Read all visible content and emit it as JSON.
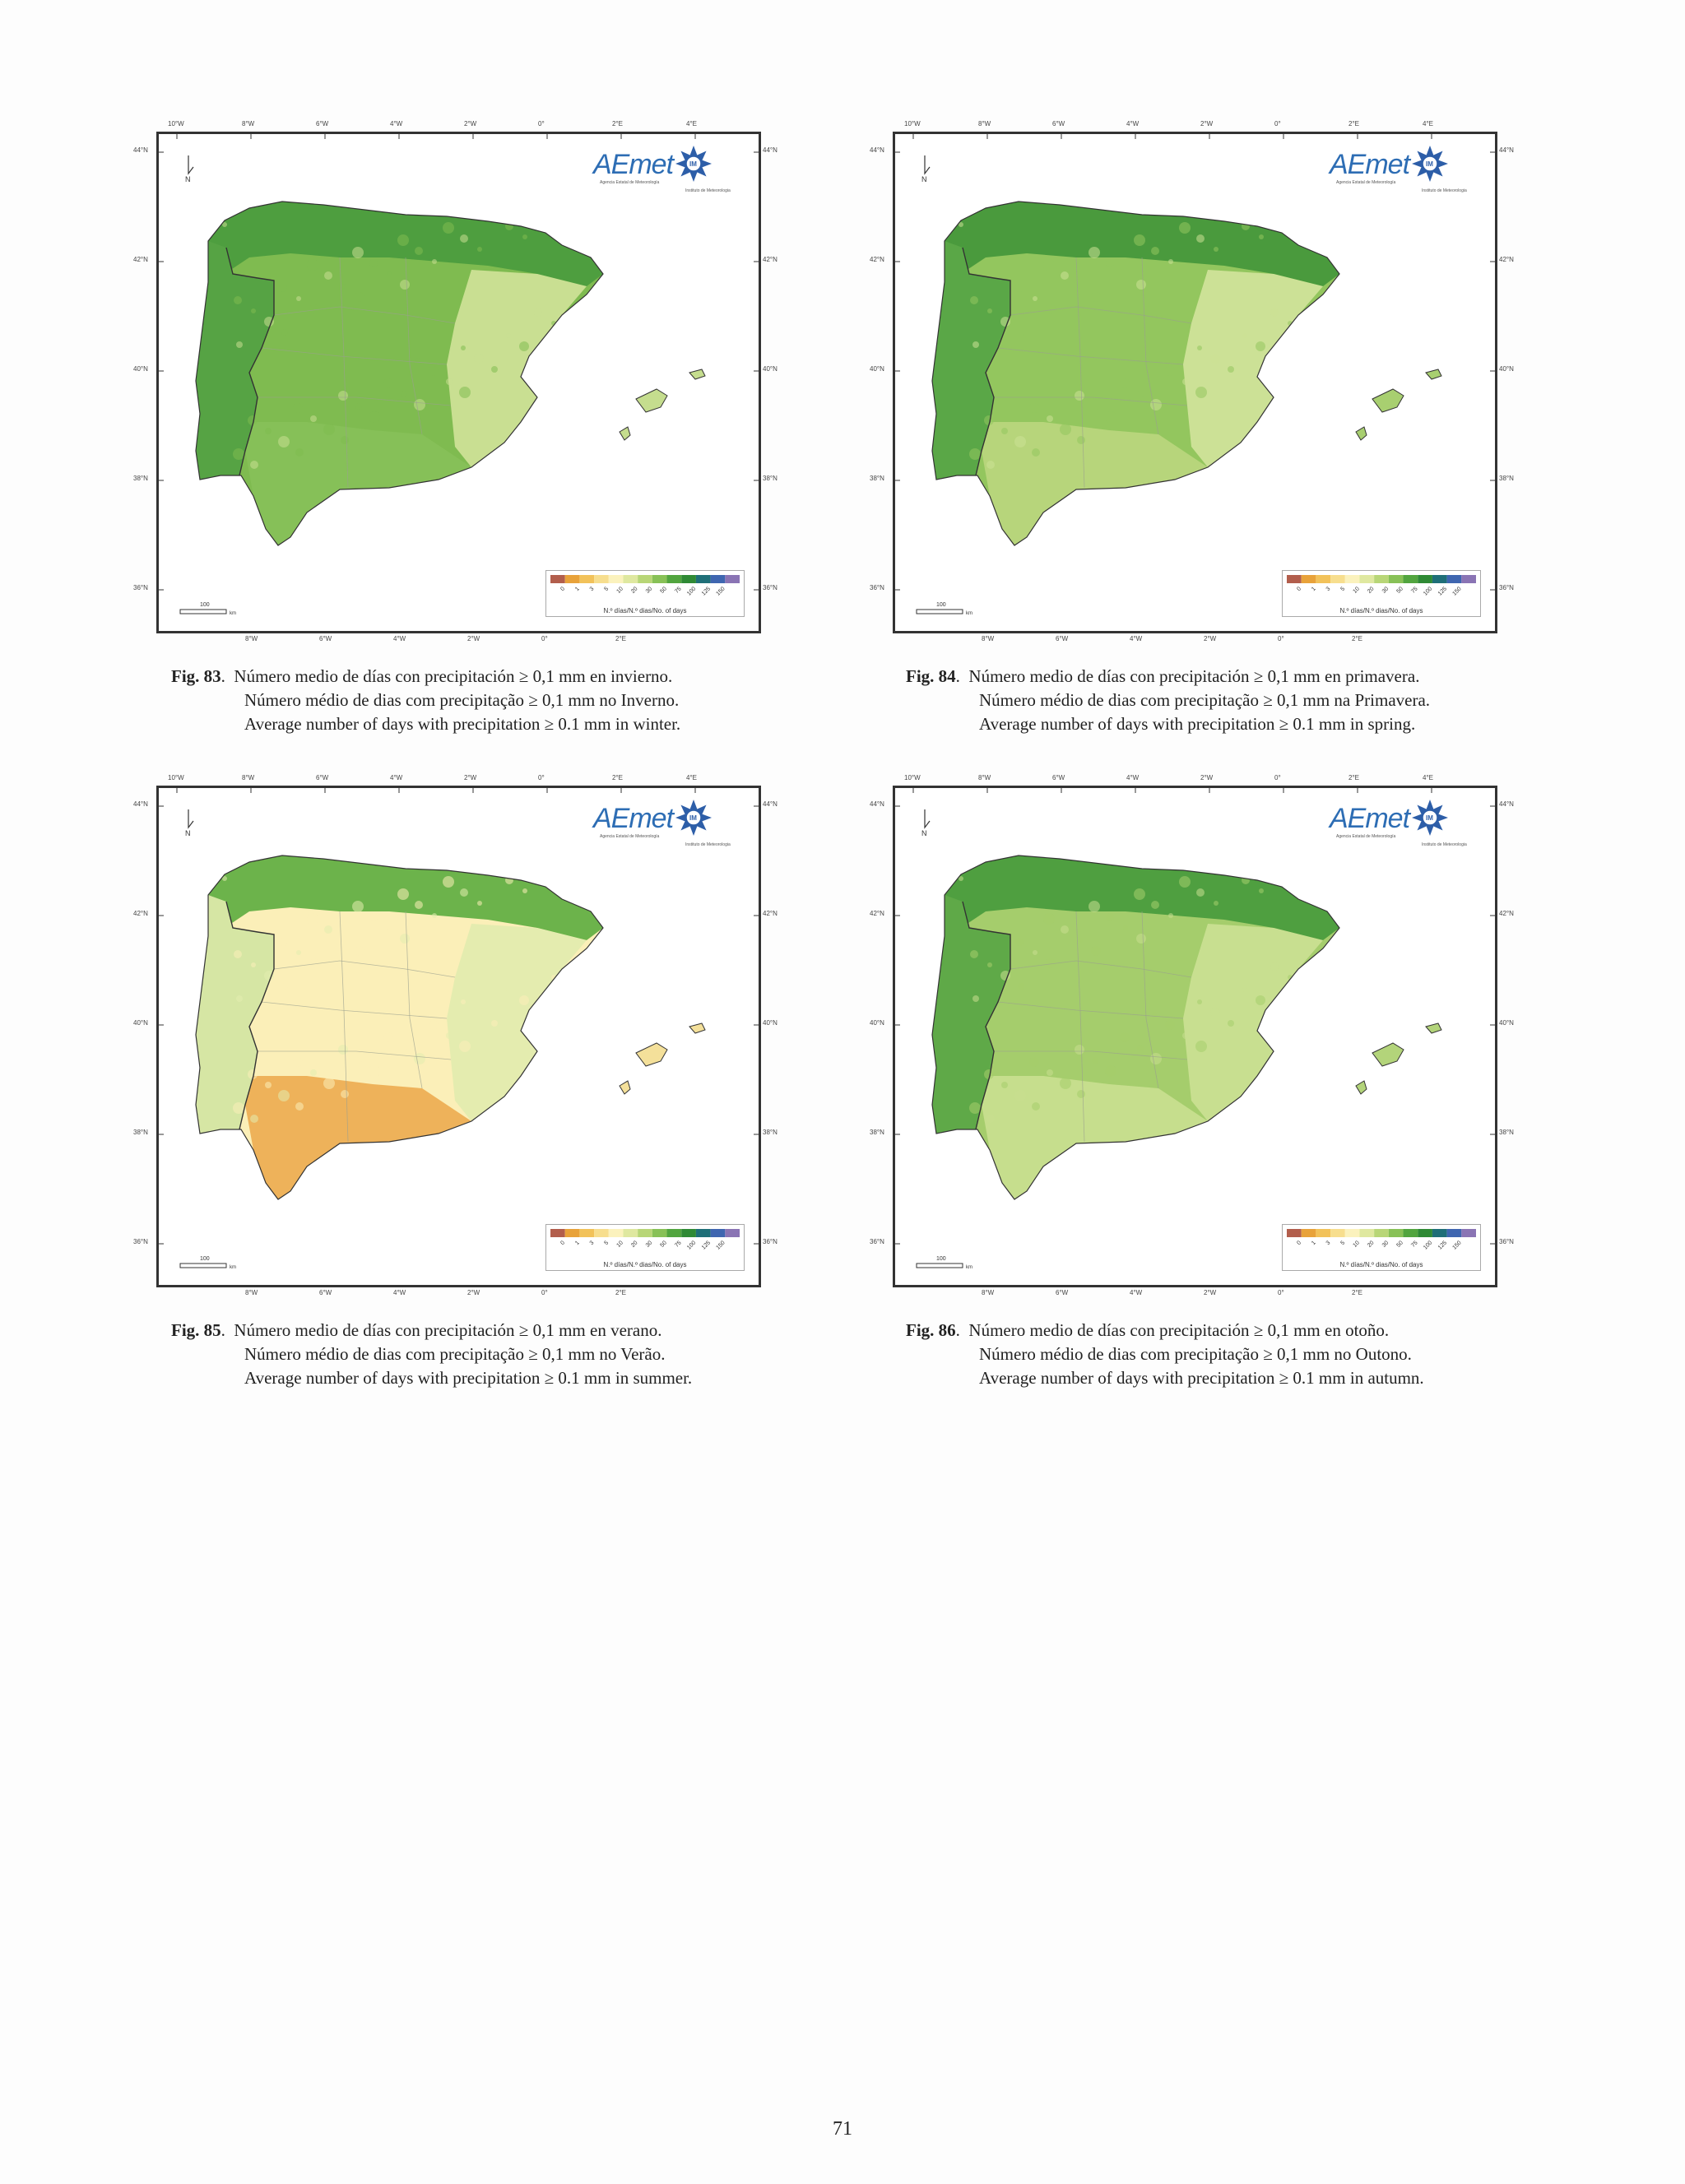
{
  "page_number": "71",
  "logo": {
    "text": "AEmet",
    "subtitle": "Agencia Estatal de Meteorología",
    "seal": "IM",
    "seal_subtitle": "Instituto de Meteorologia"
  },
  "map_axes": {
    "top_ticks": [
      "10°W",
      "8°W",
      "6°W",
      "4°W",
      "2°W",
      "0°",
      "2°E",
      "4°E"
    ],
    "bottom_ticks": [
      "8°W",
      "6°W",
      "4°W",
      "2°W",
      "0°",
      "2°E"
    ],
    "left_ticks": [
      "44°N",
      "42°N",
      "40°N",
      "38°N",
      "36°N"
    ],
    "right_ticks": [
      "44°N",
      "42°N",
      "40°N",
      "38°N",
      "36°N"
    ],
    "north_arrow": "N",
    "scale_bar": {
      "value": "100",
      "unit": "km"
    }
  },
  "legend": {
    "title": "N.º días/N.º dias/No. of days",
    "classes": [
      "0",
      "1",
      "3",
      "5",
      "10",
      "20",
      "30",
      "50",
      "75",
      "100",
      "125",
      "150"
    ],
    "colors": [
      "#b25e4c",
      "#e8a23a",
      "#f2c25a",
      "#f7de8e",
      "#fbf2bd",
      "#dfe8a0",
      "#b8d677",
      "#88c157",
      "#52a53f",
      "#2f8a35",
      "#1f6f78",
      "#3f66b0",
      "#8a74b4"
    ]
  },
  "figures": [
    {
      "number": "Fig. 83",
      "lines": [
        "Número medio de días con precipitación ≥ 0,1 mm en invierno.",
        "Número médio de dias com precipitação ≥ 0,1 mm no Inverno.",
        "Average number of days with precipitation ≥ 0.1 mm in winter."
      ],
      "palette": {
        "north": "#4e9e3f",
        "west": "#56a344",
        "center": "#7fbb50",
        "east": "#c9df92",
        "south": "#86c058",
        "islands": "#c5dd8e"
      }
    },
    {
      "number": "Fig. 84",
      "lines": [
        "Número medio de días con precipitación ≥ 0,1 mm en primavera.",
        "Número médio de dias com precipitação ≥ 0,1 mm na Primavera.",
        "Average number of days with precipitation ≥ 0.1 mm in spring."
      ],
      "palette": {
        "north": "#4a9a3d",
        "west": "#5aa747",
        "center": "#93c65e",
        "east": "#cce196",
        "south": "#b7d57b",
        "islands": "#a8cf70"
      }
    },
    {
      "number": "Fig. 85",
      "lines": [
        "Número medio de días con precipitación ≥ 0,1 mm en verano.",
        "Número médio de dias com precipitação ≥ 0,1 mm no Verão.",
        "Average number of days with precipitation ≥ 0.1 mm in summer."
      ],
      "palette": {
        "north": "#6cb34b",
        "west": "#d6e6a4",
        "center": "#fbefb8",
        "east": "#e4ecaf",
        "south": "#eeb25a",
        "islands": "#f4e09a"
      }
    },
    {
      "number": "Fig. 86",
      "lines": [
        "Número medio de días con precipitación ≥ 0,1 mm en otoño.",
        "Número médio de dias com precipitação ≥ 0,1 mm no Outono.",
        "Average number of days with precipitation ≥ 0.1 mm in autumn."
      ],
      "palette": {
        "north": "#4f9f40",
        "west": "#5fa948",
        "center": "#a5cd6c",
        "east": "#c8df90",
        "south": "#c6de8d",
        "islands": "#b3d47a"
      }
    }
  ]
}
